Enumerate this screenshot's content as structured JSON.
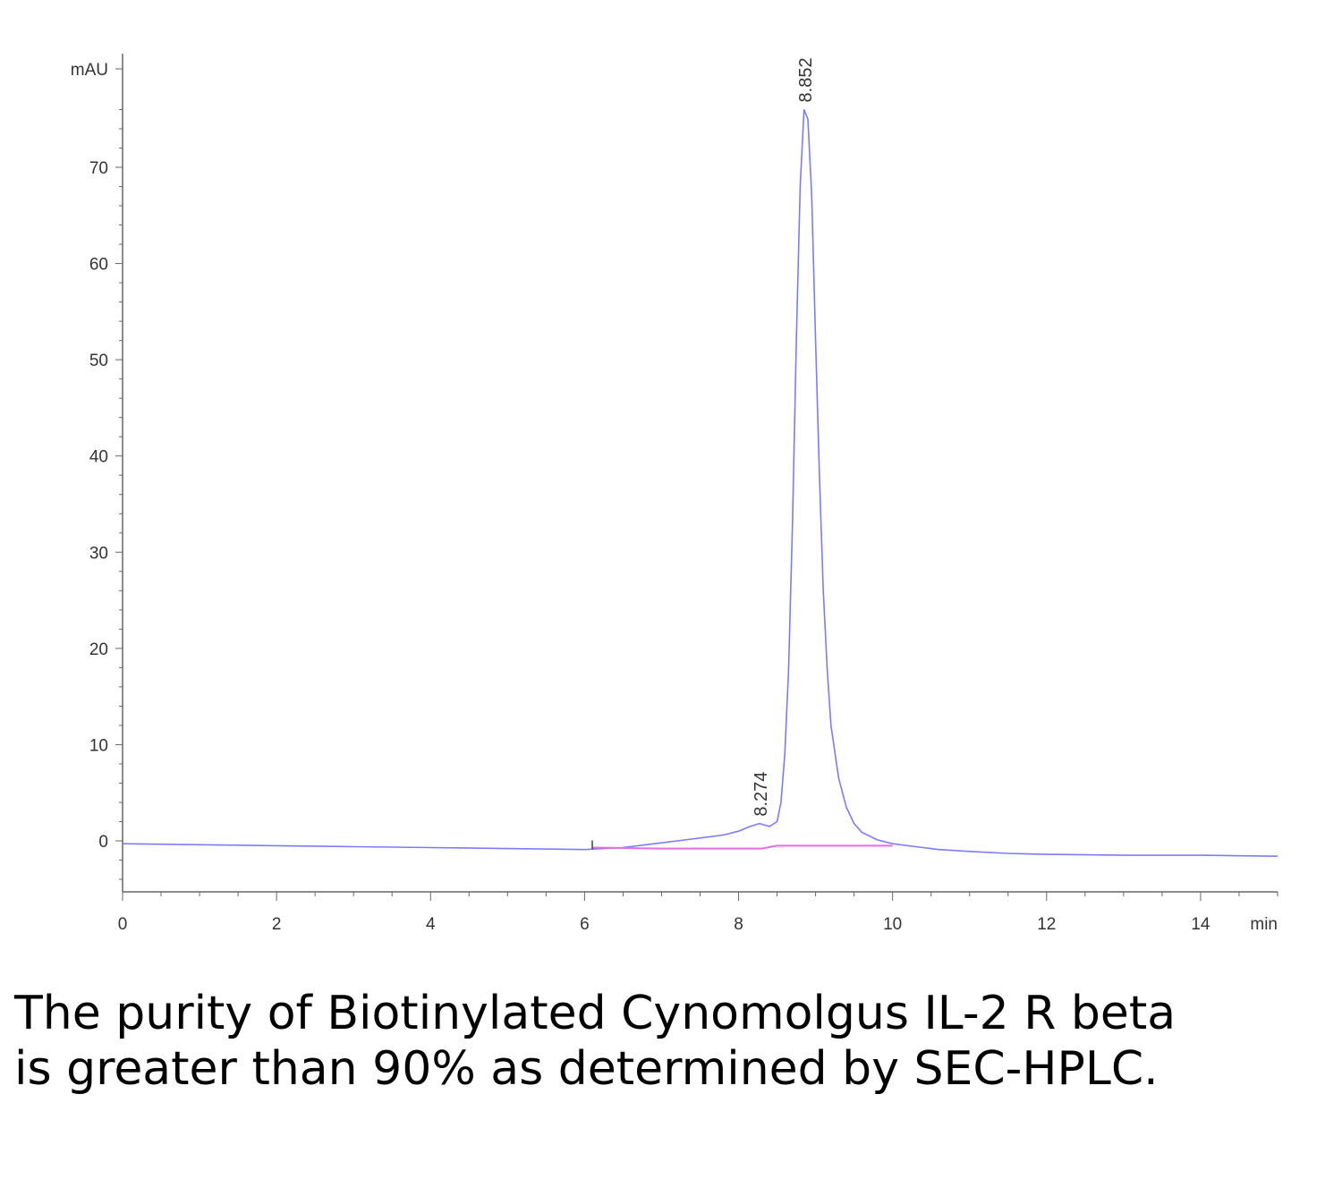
{
  "chart_data": {
    "type": "line",
    "ylabel": "mAU",
    "xlabel": "min",
    "xlim": [
      0,
      15
    ],
    "ylim": [
      -5,
      80
    ],
    "x_ticks": [
      0,
      2,
      4,
      6,
      8,
      10,
      12,
      14
    ],
    "y_ticks": [
      0,
      10,
      20,
      30,
      40,
      50,
      60,
      70
    ],
    "grid": false,
    "series": [
      {
        "role": "chromatogram",
        "color": "#7b7bff",
        "x": [
          0,
          1,
          2,
          3,
          4,
          5,
          6,
          6.5,
          7,
          7.5,
          7.8,
          8.0,
          8.15,
          8.27,
          8.4,
          8.5,
          8.55,
          8.6,
          8.65,
          8.7,
          8.75,
          8.8,
          8.85,
          8.9,
          8.95,
          9.0,
          9.05,
          9.1,
          9.15,
          9.2,
          9.3,
          9.4,
          9.5,
          9.6,
          9.8,
          10.0,
          10.3,
          10.6,
          11.0,
          11.5,
          12.0,
          13.0,
          14.0,
          15.0
        ],
        "y": [
          -0.3,
          -0.4,
          -0.5,
          -0.6,
          -0.7,
          -0.8,
          -0.9,
          -0.7,
          -0.2,
          0.3,
          0.6,
          1.0,
          1.5,
          1.8,
          1.5,
          2.0,
          4.0,
          9.0,
          18.0,
          33.0,
          52.0,
          68.0,
          76.0,
          75.0,
          67.0,
          52.0,
          38.0,
          26.0,
          18.0,
          12.0,
          6.5,
          3.5,
          1.8,
          0.9,
          0.1,
          -0.3,
          -0.6,
          -0.9,
          -1.1,
          -1.3,
          -1.4,
          -1.5,
          -1.5,
          -1.6
        ]
      },
      {
        "role": "baseline",
        "color": "#e070e0",
        "x": [
          6.1,
          7.0,
          8.0,
          8.3,
          8.5,
          9.0,
          9.5,
          10.0
        ],
        "y": [
          -0.7,
          -0.8,
          -0.8,
          -0.8,
          -0.5,
          -0.5,
          -0.5,
          -0.5
        ]
      }
    ],
    "peaks": [
      {
        "label": "8.274",
        "x": 8.274,
        "y": 1.8
      },
      {
        "label": "8.852",
        "x": 8.852,
        "y": 76.0
      }
    ]
  },
  "caption": "The purity of Biotinylated Cynomolgus IL-2 R beta is greater than 90% as determined by SEC-HPLC.",
  "colors": {
    "signal": "#7b7bff",
    "baseline": "#e070e0",
    "axis": "#666666"
  }
}
